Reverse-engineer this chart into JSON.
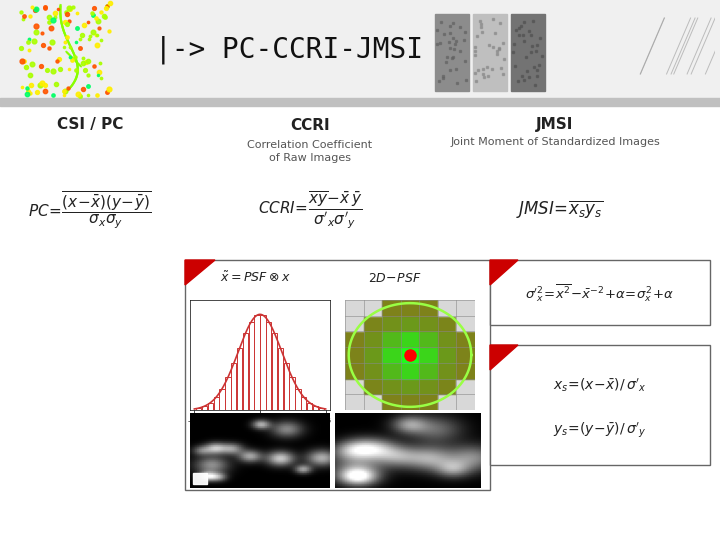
{
  "bg_color": "#f0f0f0",
  "header_bg": "#d0d0d0",
  "title_text": "|-> PC-CCRI-JMSI",
  "title_fontsize": 20,
  "title_color": "#111111",
  "col1_label": "CSI / PC",
  "col2_label": "CCRI",
  "col3_label": "JMSI",
  "col2_sub": "Correlation Coefficient\nof Raw Images",
  "col3_sub": "Joint Moment of Standardized Images",
  "dark_gray": "#222222",
  "red_corner": "#cc0000",
  "header_separator_color": "#aaaaaa"
}
